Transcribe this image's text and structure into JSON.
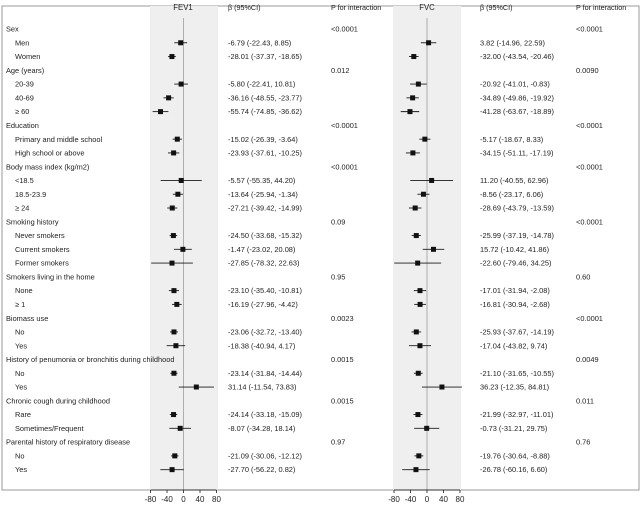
{
  "chart_data": {
    "type": "forest",
    "panels": [
      {
        "title": "FEV1",
        "beta_header": "β  (95%CI)",
        "p_header": "P for interaction",
        "xlim": [
          -80,
          80
        ],
        "ticks": [
          -80,
          -40,
          0,
          40,
          80
        ]
      },
      {
        "title": "FVC",
        "beta_header": "β  (95%CI)",
        "p_header": "P for interaction",
        "xlim": [
          -80,
          80
        ],
        "ticks": [
          -80,
          -40,
          0,
          40,
          80
        ]
      }
    ],
    "rows": [
      {
        "label": "Sex",
        "header": true,
        "p_fev1": "<0.0001",
        "p_fvc": "<0.0001"
      },
      {
        "label": "Men",
        "fev1": {
          "est": -6.79,
          "lo": -22.43,
          "hi": 8.85,
          "text": "-6.79 (-22.43, 8.85)"
        },
        "fvc": {
          "est": 3.82,
          "lo": -14.96,
          "hi": 22.59,
          "text": "3.82 (-14.96, 22.59)"
        }
      },
      {
        "label": "Women",
        "fev1": {
          "est": -28.01,
          "lo": -37.37,
          "hi": -18.65,
          "text": "-28.01 (-37.37, -18.65)"
        },
        "fvc": {
          "est": -32.0,
          "lo": -43.54,
          "hi": -20.46,
          "text": "-32.00 (-43.54, -20.46)"
        }
      },
      {
        "label": "Age (years)",
        "header": true,
        "p_fev1": "0.012",
        "p_fvc": "0.0090"
      },
      {
        "label": "20-39",
        "fev1": {
          "est": -5.8,
          "lo": -22.41,
          "hi": 10.81,
          "text": "-5.80 (-22.41, 10.81)"
        },
        "fvc": {
          "est": -20.92,
          "lo": -41.01,
          "hi": -0.83,
          "text": "-20.92 (-41.01, -0.83)"
        }
      },
      {
        "label": "40-69",
        "fev1": {
          "est": -36.16,
          "lo": -48.55,
          "hi": -23.77,
          "text": "-36.16 (-48.55, -23.77)"
        },
        "fvc": {
          "est": -34.89,
          "lo": -49.86,
          "hi": -19.92,
          "text": "-34.89 (-49.86, -19.92)"
        }
      },
      {
        "label": "≥ 60",
        "fev1": {
          "est": -55.74,
          "lo": -74.85,
          "hi": -36.62,
          "text": "-55.74 (-74.85, -36.62)"
        },
        "fvc": {
          "est": -41.28,
          "lo": -63.67,
          "hi": -18.89,
          "text": "-41.28 (-63.67, -18.89)"
        }
      },
      {
        "label": "Education",
        "header": true,
        "p_fev1": "<0.0001",
        "p_fvc": "<0.0001"
      },
      {
        "label": "Primary and middle school",
        "fev1": {
          "est": -15.02,
          "lo": -26.39,
          "hi": -3.64,
          "text": "-15.02 (-26.39, -3.64)"
        },
        "fvc": {
          "est": -5.17,
          "lo": -18.67,
          "hi": 8.33,
          "text": "-5.17 (-18.67, 8.33)"
        }
      },
      {
        "label": "High school or above",
        "fev1": {
          "est": -23.93,
          "lo": -37.61,
          "hi": -10.25,
          "text": "-23.93 (-37.61, -10.25)"
        },
        "fvc": {
          "est": -34.15,
          "lo": -51.11,
          "hi": -17.19,
          "text": "-34.15 (-51.11, -17.19)"
        }
      },
      {
        "label": "Body mass index (kg/m2)",
        "header": true,
        "p_fev1": "<0.0001",
        "p_fvc": "<0.0001"
      },
      {
        "label": "<18.5",
        "fev1": {
          "est": -5.57,
          "lo": -55.35,
          "hi": 44.2,
          "text": "-5.57 (-55.35, 44.20)"
        },
        "fvc": {
          "est": 11.2,
          "lo": -40.55,
          "hi": 62.96,
          "text": "11.20 (-40.55, 62.96)"
        }
      },
      {
        "label": "18.5-23.9",
        "fev1": {
          "est": -13.64,
          "lo": -25.94,
          "hi": -1.34,
          "text": "-13.64 (-25.94, -1.34)"
        },
        "fvc": {
          "est": -8.56,
          "lo": -23.17,
          "hi": 6.06,
          "text": "-8.56 (-23.17, 6.06)"
        }
      },
      {
        "label": "≥ 24",
        "fev1": {
          "est": -27.21,
          "lo": -39.42,
          "hi": -14.99,
          "text": "-27.21 (-39.42, -14.99)"
        },
        "fvc": {
          "est": -28.69,
          "lo": -43.79,
          "hi": -13.59,
          "text": "-28.69 (-43.79, -13.59)"
        }
      },
      {
        "label": "Smoking history",
        "header": true,
        "p_fev1": "0.09",
        "p_fvc": "<0.0001"
      },
      {
        "label": "Never smokers",
        "fev1": {
          "est": -24.5,
          "lo": -33.68,
          "hi": -15.32,
          "text": "-24.50 (-33.68, -15.32)"
        },
        "fvc": {
          "est": -25.99,
          "lo": -37.19,
          "hi": -14.78,
          "text": "-25.99 (-37.19, -14.78)"
        }
      },
      {
        "label": "Current smokers",
        "fev1": {
          "est": -1.47,
          "lo": -23.02,
          "hi": 20.08,
          "text": "-1.47 (-23.02, 20.08)"
        },
        "fvc": {
          "est": 15.72,
          "lo": -10.42,
          "hi": 41.86,
          "text": "15.72 (-10.42, 41.86)"
        }
      },
      {
        "label": "Former smokers",
        "fev1": {
          "est": -27.85,
          "lo": -78.32,
          "hi": 22.63,
          "text": "-27.85 (-78.32, 22.63)"
        },
        "fvc": {
          "est": -22.6,
          "lo": -79.46,
          "hi": 34.25,
          "text": "-22.60 (-79.46, 34.25)"
        }
      },
      {
        "label": "Smokers living in the home",
        "header": true,
        "p_fev1": "0.95",
        "p_fvc": "0.60"
      },
      {
        "label": "None",
        "fev1": {
          "est": -23.1,
          "lo": -35.4,
          "hi": -10.81,
          "text": "-23.10 (-35.40, -10.81)"
        },
        "fvc": {
          "est": -17.01,
          "lo": -31.94,
          "hi": -2.08,
          "text": "-17.01 (-31.94, -2.08)"
        }
      },
      {
        "label": "≥ 1",
        "fev1": {
          "est": -16.19,
          "lo": -27.96,
          "hi": -4.42,
          "text": "-16.19 (-27.96, -4.42)"
        },
        "fvc": {
          "est": -16.81,
          "lo": -30.94,
          "hi": -2.68,
          "text": "-16.81 (-30.94, -2.68)"
        }
      },
      {
        "label": "Biomass use",
        "header": true,
        "p_fev1": "0.0023",
        "p_fvc": "<0.0001"
      },
      {
        "label": "No",
        "fev1": {
          "est": -23.06,
          "lo": -32.72,
          "hi": -13.4,
          "text": "-23.06 (-32.72, -13.40)"
        },
        "fvc": {
          "est": -25.93,
          "lo": -37.67,
          "hi": -14.19,
          "text": "-25.93 (-37.67, -14.19)"
        }
      },
      {
        "label": "Yes",
        "fev1": {
          "est": -18.38,
          "lo": -40.94,
          "hi": 4.17,
          "text": "-18.38 (-40.94, 4.17)"
        },
        "fvc": {
          "est": -17.04,
          "lo": -43.82,
          "hi": 9.74,
          "text": "-17.04 (-43.82, 9.74)"
        }
      },
      {
        "label": "History of penumonia or bronchitis during childhood",
        "header": true,
        "p_fev1": "0.0015",
        "p_fvc": "0.0049"
      },
      {
        "label": "No",
        "fev1": {
          "est": -23.14,
          "lo": -31.84,
          "hi": -14.44,
          "text": "-23.14 (-31.84, -14.44)"
        },
        "fvc": {
          "est": -21.1,
          "lo": -31.65,
          "hi": -10.55,
          "text": "-21.10 (-31.65, -10.55)"
        }
      },
      {
        "label": "Yes",
        "fev1": {
          "est": 31.14,
          "lo": -11.54,
          "hi": 73.83,
          "text": "31.14 (-11.54, 73.83)"
        },
        "fvc": {
          "est": 36.23,
          "lo": -12.35,
          "hi": 84.81,
          "text": "36.23 (-12.35, 84.81)"
        }
      },
      {
        "label": "Chronic cough during childhood",
        "header": true,
        "p_fev1": "0.0015",
        "p_fvc": "0.011"
      },
      {
        "label": "Rare",
        "fev1": {
          "est": -24.14,
          "lo": -33.18,
          "hi": -15.09,
          "text": "-24.14 (-33.18, -15.09)"
        },
        "fvc": {
          "est": -21.99,
          "lo": -32.97,
          "hi": -11.01,
          "text": "-21.99 (-32.97, -11.01)"
        }
      },
      {
        "label": "Sometimes/Frequent",
        "fev1": {
          "est": -8.07,
          "lo": -34.28,
          "hi": 18.14,
          "text": "-8.07 (-34.28, 18.14)"
        },
        "fvc": {
          "est": -0.73,
          "lo": -31.21,
          "hi": 29.75,
          "text": "-0.73 (-31.21, 29.75)"
        }
      },
      {
        "label": "Parental history of respiratory disease",
        "header": true,
        "p_fev1": "0.97",
        "p_fvc": "0.76"
      },
      {
        "label": "No",
        "fev1": {
          "est": -21.09,
          "lo": -30.06,
          "hi": -12.12,
          "text": "-21.09 (-30.06, -12.12)"
        },
        "fvc": {
          "est": -19.76,
          "lo": -30.64,
          "hi": -8.88,
          "text": "-19.76 (-30.64, -8.88)"
        }
      },
      {
        "label": "Yes",
        "fev1": {
          "est": -27.7,
          "lo": -56.22,
          "hi": 0.82,
          "text": "-27.70 (-56.22, 0.82)"
        },
        "fvc": {
          "est": -26.78,
          "lo": -60.16,
          "hi": 6.6,
          "text": "-26.78 (-60.16, 6.60)"
        }
      }
    ]
  }
}
